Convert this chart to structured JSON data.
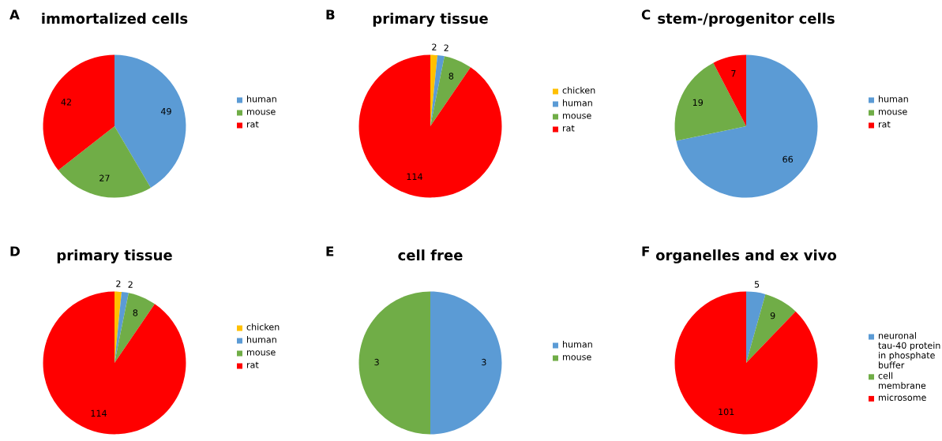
{
  "chart_data": [
    {
      "type": "pie",
      "title": "immortalized cells",
      "annotations": [
        "A"
      ],
      "categories": [
        "human",
        "mouse",
        "rat"
      ],
      "values": [
        49,
        27,
        42
      ],
      "colors": [
        "#5b9bd5",
        "#70ad47",
        "#ff0000"
      ],
      "data_labels": true,
      "legend": "right"
    },
    {
      "type": "pie",
      "title": "primary tissue",
      "annotations": [
        "B"
      ],
      "categories": [
        "chicken",
        "human",
        "mouse",
        "rat"
      ],
      "values": [
        2,
        2,
        8,
        114
      ],
      "colors": [
        "#ffc000",
        "#5b9bd5",
        "#70ad47",
        "#ff0000"
      ],
      "data_labels": true,
      "legend": "right"
    },
    {
      "type": "pie",
      "title": "stem-/progenitor cells",
      "annotations": [
        "C"
      ],
      "categories": [
        "human",
        "mouse",
        "rat"
      ],
      "values": [
        66,
        19,
        7
      ],
      "colors": [
        "#5b9bd5",
        "#70ad47",
        "#ff0000"
      ],
      "data_labels": true,
      "legend": "right"
    },
    {
      "type": "pie",
      "title": "primary tissue",
      "annotations": [
        "D"
      ],
      "categories": [
        "chicken",
        "human",
        "mouse",
        "rat"
      ],
      "values": [
        2,
        2,
        8,
        114
      ],
      "colors": [
        "#ffc000",
        "#5b9bd5",
        "#70ad47",
        "#ff0000"
      ],
      "data_labels": true,
      "legend": "right"
    },
    {
      "type": "pie",
      "title": "cell free",
      "annotations": [
        "E"
      ],
      "categories": [
        "human",
        "mouse"
      ],
      "values": [
        3,
        3
      ],
      "colors": [
        "#5b9bd5",
        "#70ad47"
      ],
      "data_labels": true,
      "legend": "right"
    },
    {
      "type": "pie",
      "title": "organelles and ex vivo",
      "annotations": [
        "F"
      ],
      "categories": [
        "neuronal tau-40 protein in phosphate buffer",
        "cell membrane",
        "microsome"
      ],
      "values": [
        5,
        9,
        101
      ],
      "colors": [
        "#5b9bd5",
        "#70ad47",
        "#ff0000"
      ],
      "data_labels": true,
      "legend": "right"
    }
  ]
}
